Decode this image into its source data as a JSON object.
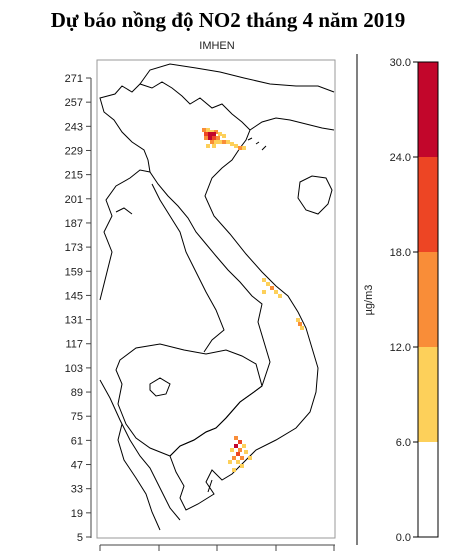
{
  "title": "Dự báo nồng độ NO2 tháng 4 năm 2019",
  "subtitle": "IMHEN",
  "unit": "µg/m3",
  "colors": {
    "border": "#000000",
    "frame": "#999999"
  },
  "y_ticks": [
    "5",
    "19",
    "33",
    "47",
    "61",
    "75",
    "89",
    "103",
    "117",
    "131",
    "145",
    "159",
    "173",
    "187",
    "201",
    "215",
    "229",
    "243",
    "257",
    "271"
  ],
  "legend": {
    "labels": [
      "0.0",
      "6.0",
      "12.0",
      "18.0",
      "24.0",
      "30.0"
    ],
    "bins": [
      {
        "from": 0,
        "to": 6,
        "color": "#ffffff"
      },
      {
        "from": 6,
        "to": 12,
        "color": "#fdd05a"
      },
      {
        "from": 12,
        "to": 18,
        "color": "#f98d38"
      },
      {
        "from": 18,
        "to": 24,
        "color": "#ed4524"
      },
      {
        "from": 24,
        "to": 30,
        "color": "#c2062b"
      }
    ]
  }
}
